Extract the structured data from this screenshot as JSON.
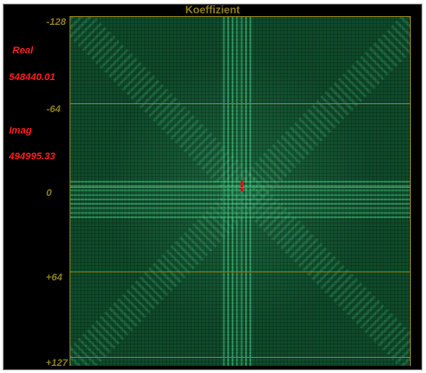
{
  "panel": {
    "title": "Koeffizient"
  },
  "axis": {
    "ticks": [
      "-128",
      "-64",
      "0",
      "+64",
      "+127"
    ]
  },
  "readout": {
    "real_label": "Real",
    "real_value": "548440.01",
    "imag_label": "Imag",
    "imag_value": "494995.33"
  },
  "colors": {
    "background": "#000000",
    "grid": "#8f7f1a",
    "readout": "#ff1e1e",
    "spectrum": "#0f4a2a",
    "marker": "#e01010"
  }
}
